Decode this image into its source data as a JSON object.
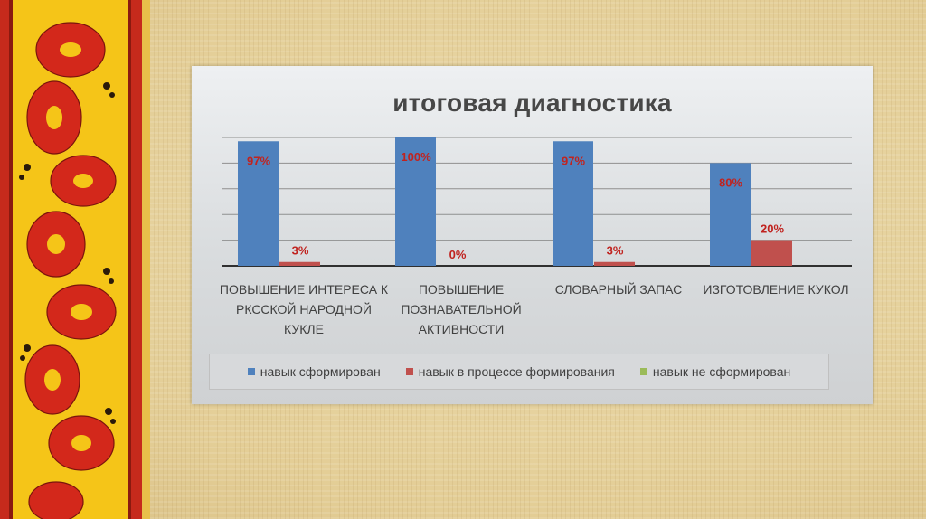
{
  "colors": {
    "series": [
      "#4f81bd",
      "#c0504d",
      "#9bbb59"
    ],
    "data_label": "#c0231f",
    "axis_label": "#404040"
  },
  "chart_data": {
    "type": "bar",
    "title": "итоговая диагностика",
    "categories": [
      [
        "ПОВЫШЕНИЕ ИНТЕРЕСА К",
        "РКССКОЙ НАРОДНОЙ",
        "КУКЛЕ"
      ],
      [
        "ПОВЫШЕНИЕ",
        "ПОЗНАВАТЕЛЬНОЙ",
        "АКТИВНОСТИ"
      ],
      [
        "СЛОВАРНЫЙ ЗАПАС"
      ],
      [
        "ИЗГОТОВЛЕНИЕ КУКОЛ"
      ]
    ],
    "series": [
      {
        "name": "навык сформирован",
        "values": [
          97,
          100,
          97,
          80
        ],
        "labels": [
          "97%",
          "100%",
          "97%",
          "80%"
        ]
      },
      {
        "name": "навык в процессе формирования",
        "values": [
          3,
          0,
          3,
          20
        ],
        "labels": [
          "3%",
          "0%",
          "3%",
          "20%"
        ]
      },
      {
        "name": "навык не сформирован",
        "values": [
          0,
          0,
          0,
          0
        ],
        "labels": [
          "",
          "",
          "",
          ""
        ]
      }
    ],
    "ylim": [
      0,
      100
    ],
    "grid": true,
    "legend_position": "bottom"
  }
}
